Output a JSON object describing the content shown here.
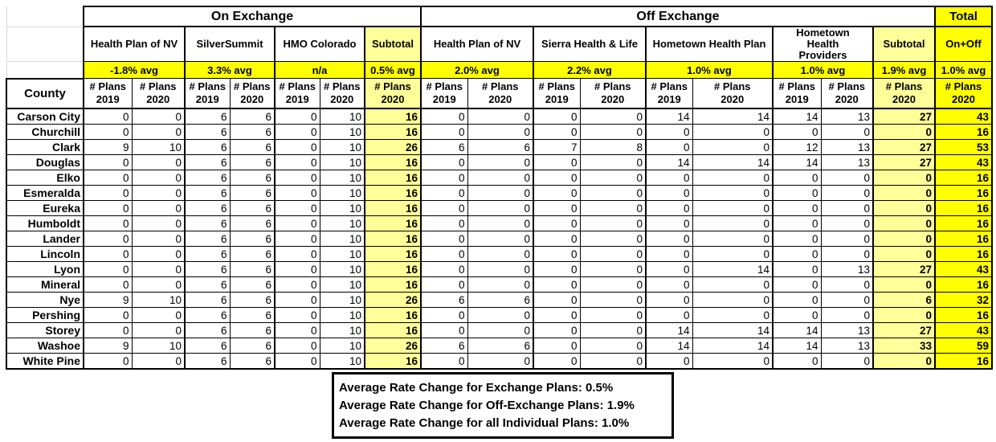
{
  "colors": {
    "bright_yellow": "#FFFF00",
    "pale_yellow": "#FFFF99",
    "border": "#000000",
    "faint_gridline": "#d9d9d9"
  },
  "table": {
    "title_on": "On Exchange",
    "title_off": "Off Exchange",
    "title_total": "Total",
    "county_header": "County",
    "plans_label": "# Plans",
    "year_2019": "2019",
    "year_2020": "2020",
    "on_exchange": {
      "carriers": [
        {
          "name": "Health Plan of NV",
          "avg": "-1.8% avg"
        },
        {
          "name": "SilverSummit",
          "avg": "3.3% avg"
        },
        {
          "name": "HMO Colorado",
          "avg": "n/a"
        }
      ],
      "subtotal": {
        "name": "Subtotal",
        "avg": "0.5% avg"
      }
    },
    "off_exchange": {
      "carriers": [
        {
          "name": "Health Plan of NV",
          "avg": "2.0% avg"
        },
        {
          "name": "Sierra Health & Life",
          "avg": "2.2% avg"
        },
        {
          "name": "Hometown Health Plan",
          "avg": "1.0% avg"
        },
        {
          "name": "Hometown Health Providers",
          "avg": "1.0% avg"
        }
      ],
      "subtotal": {
        "name": "Subtotal",
        "avg": "1.9% avg"
      }
    },
    "total": {
      "name": "On+Off",
      "avg": "1.0% avg"
    },
    "rows": [
      {
        "county": "Carson City",
        "values": [
          0,
          0,
          6,
          6,
          0,
          10,
          16,
          0,
          0,
          0,
          0,
          14,
          14,
          14,
          13,
          27,
          43
        ]
      },
      {
        "county": "Churchill",
        "values": [
          0,
          0,
          6,
          6,
          0,
          10,
          16,
          0,
          0,
          0,
          0,
          0,
          0,
          0,
          0,
          0,
          16
        ]
      },
      {
        "county": "Clark",
        "values": [
          9,
          10,
          6,
          6,
          0,
          10,
          26,
          6,
          6,
          7,
          8,
          0,
          0,
          12,
          13,
          27,
          53
        ]
      },
      {
        "county": "Douglas",
        "values": [
          0,
          0,
          6,
          6,
          0,
          10,
          16,
          0,
          0,
          0,
          0,
          14,
          14,
          14,
          13,
          27,
          43
        ]
      },
      {
        "county": "Elko",
        "values": [
          0,
          0,
          6,
          6,
          0,
          10,
          16,
          0,
          0,
          0,
          0,
          0,
          0,
          0,
          0,
          0,
          16
        ]
      },
      {
        "county": "Esmeralda",
        "values": [
          0,
          0,
          6,
          6,
          0,
          10,
          16,
          0,
          0,
          0,
          0,
          0,
          0,
          0,
          0,
          0,
          16
        ]
      },
      {
        "county": "Eureka",
        "values": [
          0,
          0,
          6,
          6,
          0,
          10,
          16,
          0,
          0,
          0,
          0,
          0,
          0,
          0,
          0,
          0,
          16
        ]
      },
      {
        "county": "Humboldt",
        "values": [
          0,
          0,
          6,
          6,
          0,
          10,
          16,
          0,
          0,
          0,
          0,
          0,
          0,
          0,
          0,
          0,
          16
        ]
      },
      {
        "county": "Lander",
        "values": [
          0,
          0,
          6,
          6,
          0,
          10,
          16,
          0,
          0,
          0,
          0,
          0,
          0,
          0,
          0,
          0,
          16
        ]
      },
      {
        "county": "Lincoln",
        "values": [
          0,
          0,
          6,
          6,
          0,
          10,
          16,
          0,
          0,
          0,
          0,
          0,
          0,
          0,
          0,
          0,
          16
        ]
      },
      {
        "county": "Lyon",
        "values": [
          0,
          0,
          6,
          6,
          0,
          10,
          16,
          0,
          0,
          0,
          0,
          0,
          14,
          0,
          13,
          27,
          43
        ]
      },
      {
        "county": "Mineral",
        "values": [
          0,
          0,
          6,
          6,
          0,
          10,
          16,
          0,
          0,
          0,
          0,
          0,
          0,
          0,
          0,
          0,
          16
        ]
      },
      {
        "county": "Nye",
        "values": [
          9,
          10,
          6,
          6,
          0,
          10,
          26,
          6,
          6,
          0,
          0,
          0,
          0,
          0,
          0,
          6,
          32
        ]
      },
      {
        "county": "Pershing",
        "values": [
          0,
          0,
          6,
          6,
          0,
          10,
          16,
          0,
          0,
          0,
          0,
          0,
          0,
          0,
          0,
          0,
          16
        ]
      },
      {
        "county": "Storey",
        "values": [
          0,
          0,
          6,
          6,
          0,
          10,
          16,
          0,
          0,
          0,
          0,
          14,
          14,
          14,
          13,
          27,
          43
        ]
      },
      {
        "county": "Washoe",
        "values": [
          9,
          10,
          6,
          6,
          0,
          10,
          26,
          6,
          6,
          0,
          0,
          14,
          14,
          14,
          13,
          33,
          59
        ]
      },
      {
        "county": "White Pine",
        "values": [
          0,
          0,
          6,
          6,
          0,
          10,
          16,
          0,
          0,
          0,
          0,
          0,
          0,
          0,
          0,
          0,
          16
        ]
      }
    ]
  },
  "summary_box": {
    "lines": [
      "Average Rate Change for Exchange Plans: 0.5%",
      "Average Rate Change for Off-Exchange Plans: 1.9%",
      "Average Rate Change for all Individual Plans: 1.0%"
    ]
  }
}
